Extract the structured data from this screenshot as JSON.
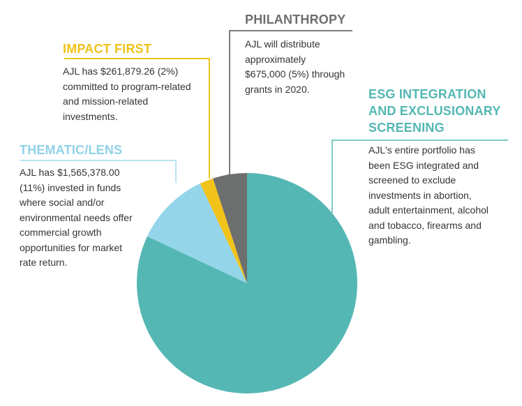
{
  "chart_data": {
    "type": "pie",
    "slices": [
      {
        "id": "esg",
        "label": "ESG INTEGRATION\nAND EXCLUSIONARY\nSCREENING",
        "value": 82,
        "color": "#54b7b3",
        "description": "AJL's entire portfolio has\nbeen ESG integrated and\nscreened to exclude\ninvestments in abortion,\nadult entertainment, alcohol\nand tobacco, firearms and\ngambling."
      },
      {
        "id": "thematic",
        "label": "THEMATIC/LENS",
        "value": 11,
        "color": "#94d5ea",
        "description": "AJL has  $1,565,378.00\n(11%) invested in funds\nwhere social and/or\nenvironmental needs offer\ncommercial growth\nopportunities for market\nrate return."
      },
      {
        "id": "impact",
        "label": "IMPACT FIRST",
        "value": 2,
        "color": "#f2c31b",
        "description": "AJL has $261,879.26 (2%)\ncommitted to program-related\nand mission-related\ninvestments."
      },
      {
        "id": "philanthropy",
        "label": "PHILANTHROPY",
        "value": 5,
        "color": "#6d6e6e",
        "description": "AJL will distribute\napproximately\n$675,000 (5%) through\ngrants in 2020."
      }
    ],
    "legend": "callouts"
  }
}
